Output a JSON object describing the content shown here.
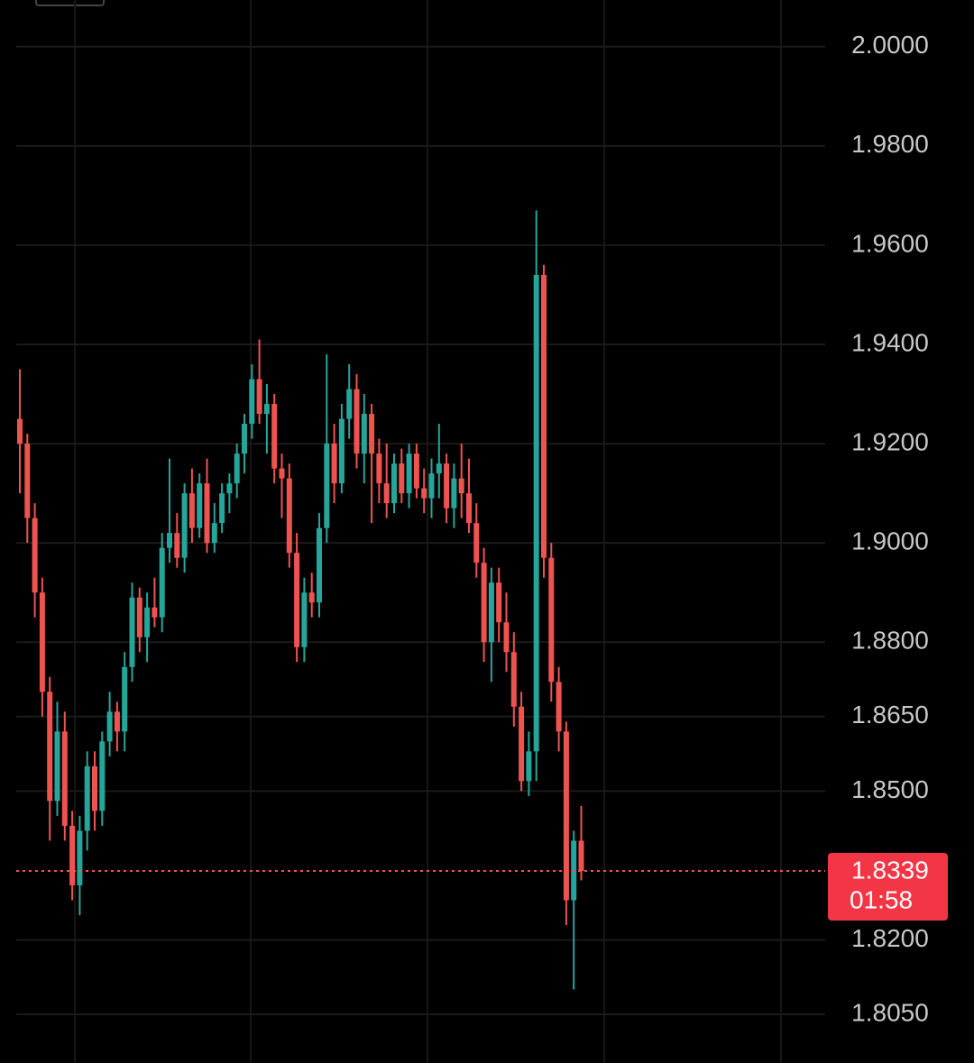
{
  "chart_data": {
    "type": "candlestick",
    "up_color": "#26a69a",
    "down_color": "#ef5350",
    "grid": true,
    "ylim": [
      1.7952,
      2.0094
    ],
    "yticks": [
      {
        "value": 2.0,
        "label": "2.0000"
      },
      {
        "value": 1.98,
        "label": "1.9800"
      },
      {
        "value": 1.96,
        "label": "1.9600"
      },
      {
        "value": 1.94,
        "label": "1.9400"
      },
      {
        "value": 1.92,
        "label": "1.9200"
      },
      {
        "value": 1.9,
        "label": "1.9000"
      },
      {
        "value": 1.88,
        "label": "1.8800"
      },
      {
        "value": 1.865,
        "label": "1.8650"
      },
      {
        "value": 1.85,
        "label": "1.8500"
      },
      {
        "value": 1.82,
        "label": "1.8200"
      },
      {
        "value": 1.805,
        "label": "1.8050"
      }
    ],
    "last_price": {
      "value": 1.8339,
      "label": "1.8339"
    },
    "countdown": "01:58",
    "open": [
      1.925,
      1.92,
      1.905,
      1.89,
      1.87,
      1.848,
      1.862,
      1.843,
      1.831,
      1.842,
      1.855,
      1.846,
      1.86,
      1.866,
      1.862,
      1.875,
      1.889,
      1.881,
      1.887,
      1.885,
      1.899,
      1.902,
      1.897,
      1.91,
      1.903,
      1.912,
      1.9,
      1.904,
      1.91,
      1.912,
      1.918,
      1.924,
      1.933,
      1.926,
      1.928,
      1.915,
      1.913,
      1.898,
      1.879,
      1.89,
      1.888,
      1.903,
      1.92,
      1.912,
      1.925,
      1.931,
      1.918,
      1.926,
      1.918,
      1.912,
      1.908,
      1.916,
      1.91,
      1.918,
      1.911,
      1.909,
      1.914,
      1.916,
      1.907,
      1.913,
      1.91,
      1.904,
      1.896,
      1.88,
      1.892,
      1.884,
      1.878,
      1.867,
      1.852,
      1.858,
      1.954,
      1.897,
      1.872,
      1.862,
      1.828,
      1.84
    ],
    "high": [
      1.935,
      1.922,
      1.908,
      1.893,
      1.873,
      1.868,
      1.866,
      1.846,
      1.845,
      1.858,
      1.858,
      1.862,
      1.87,
      1.868,
      1.878,
      1.892,
      1.891,
      1.89,
      1.893,
      1.902,
      1.917,
      1.906,
      1.912,
      1.915,
      1.914,
      1.917,
      1.908,
      1.912,
      1.914,
      1.92,
      1.926,
      1.936,
      1.941,
      1.932,
      1.93,
      1.918,
      1.916,
      1.902,
      1.893,
      1.894,
      1.906,
      1.938,
      1.924,
      1.928,
      1.936,
      1.934,
      1.93,
      1.928,
      1.921,
      1.92,
      1.918,
      1.919,
      1.92,
      1.92,
      1.915,
      1.917,
      1.924,
      1.918,
      1.916,
      1.92,
      1.917,
      1.908,
      1.899,
      1.895,
      1.895,
      1.89,
      1.882,
      1.87,
      1.862,
      1.967,
      1.956,
      1.9,
      1.875,
      1.864,
      1.842,
      1.847
    ],
    "low": [
      1.91,
      1.9,
      1.885,
      1.865,
      1.84,
      1.845,
      1.84,
      1.828,
      1.825,
      1.838,
      1.842,
      1.843,
      1.857,
      1.858,
      1.858,
      1.872,
      1.878,
      1.876,
      1.883,
      1.882,
      1.896,
      1.895,
      1.894,
      1.9,
      1.901,
      1.898,
      1.898,
      1.902,
      1.906,
      1.909,
      1.914,
      1.921,
      1.924,
      1.918,
      1.912,
      1.905,
      1.895,
      1.876,
      1.876,
      1.885,
      1.885,
      1.9,
      1.908,
      1.91,
      1.921,
      1.915,
      1.912,
      1.904,
      1.908,
      1.905,
      1.906,
      1.908,
      1.907,
      1.909,
      1.906,
      1.905,
      1.909,
      1.904,
      1.903,
      1.905,
      1.902,
      1.893,
      1.876,
      1.872,
      1.88,
      1.874,
      1.863,
      1.85,
      1.849,
      1.852,
      1.893,
      1.868,
      1.858,
      1.823,
      1.81,
      1.832
    ],
    "close": [
      1.92,
      1.905,
      1.89,
      1.87,
      1.848,
      1.862,
      1.843,
      1.831,
      1.842,
      1.855,
      1.846,
      1.86,
      1.866,
      1.862,
      1.875,
      1.889,
      1.881,
      1.887,
      1.885,
      1.899,
      1.902,
      1.897,
      1.91,
      1.903,
      1.912,
      1.9,
      1.904,
      1.91,
      1.912,
      1.918,
      1.924,
      1.933,
      1.926,
      1.928,
      1.915,
      1.913,
      1.898,
      1.879,
      1.89,
      1.888,
      1.903,
      1.92,
      1.912,
      1.925,
      1.931,
      1.918,
      1.926,
      1.918,
      1.912,
      1.908,
      1.916,
      1.91,
      1.918,
      1.911,
      1.909,
      1.914,
      1.916,
      1.907,
      1.913,
      1.91,
      1.904,
      1.896,
      1.88,
      1.892,
      1.884,
      1.878,
      1.867,
      1.852,
      1.858,
      1.954,
      1.897,
      1.872,
      1.862,
      1.828,
      1.84,
      1.8339
    ]
  }
}
